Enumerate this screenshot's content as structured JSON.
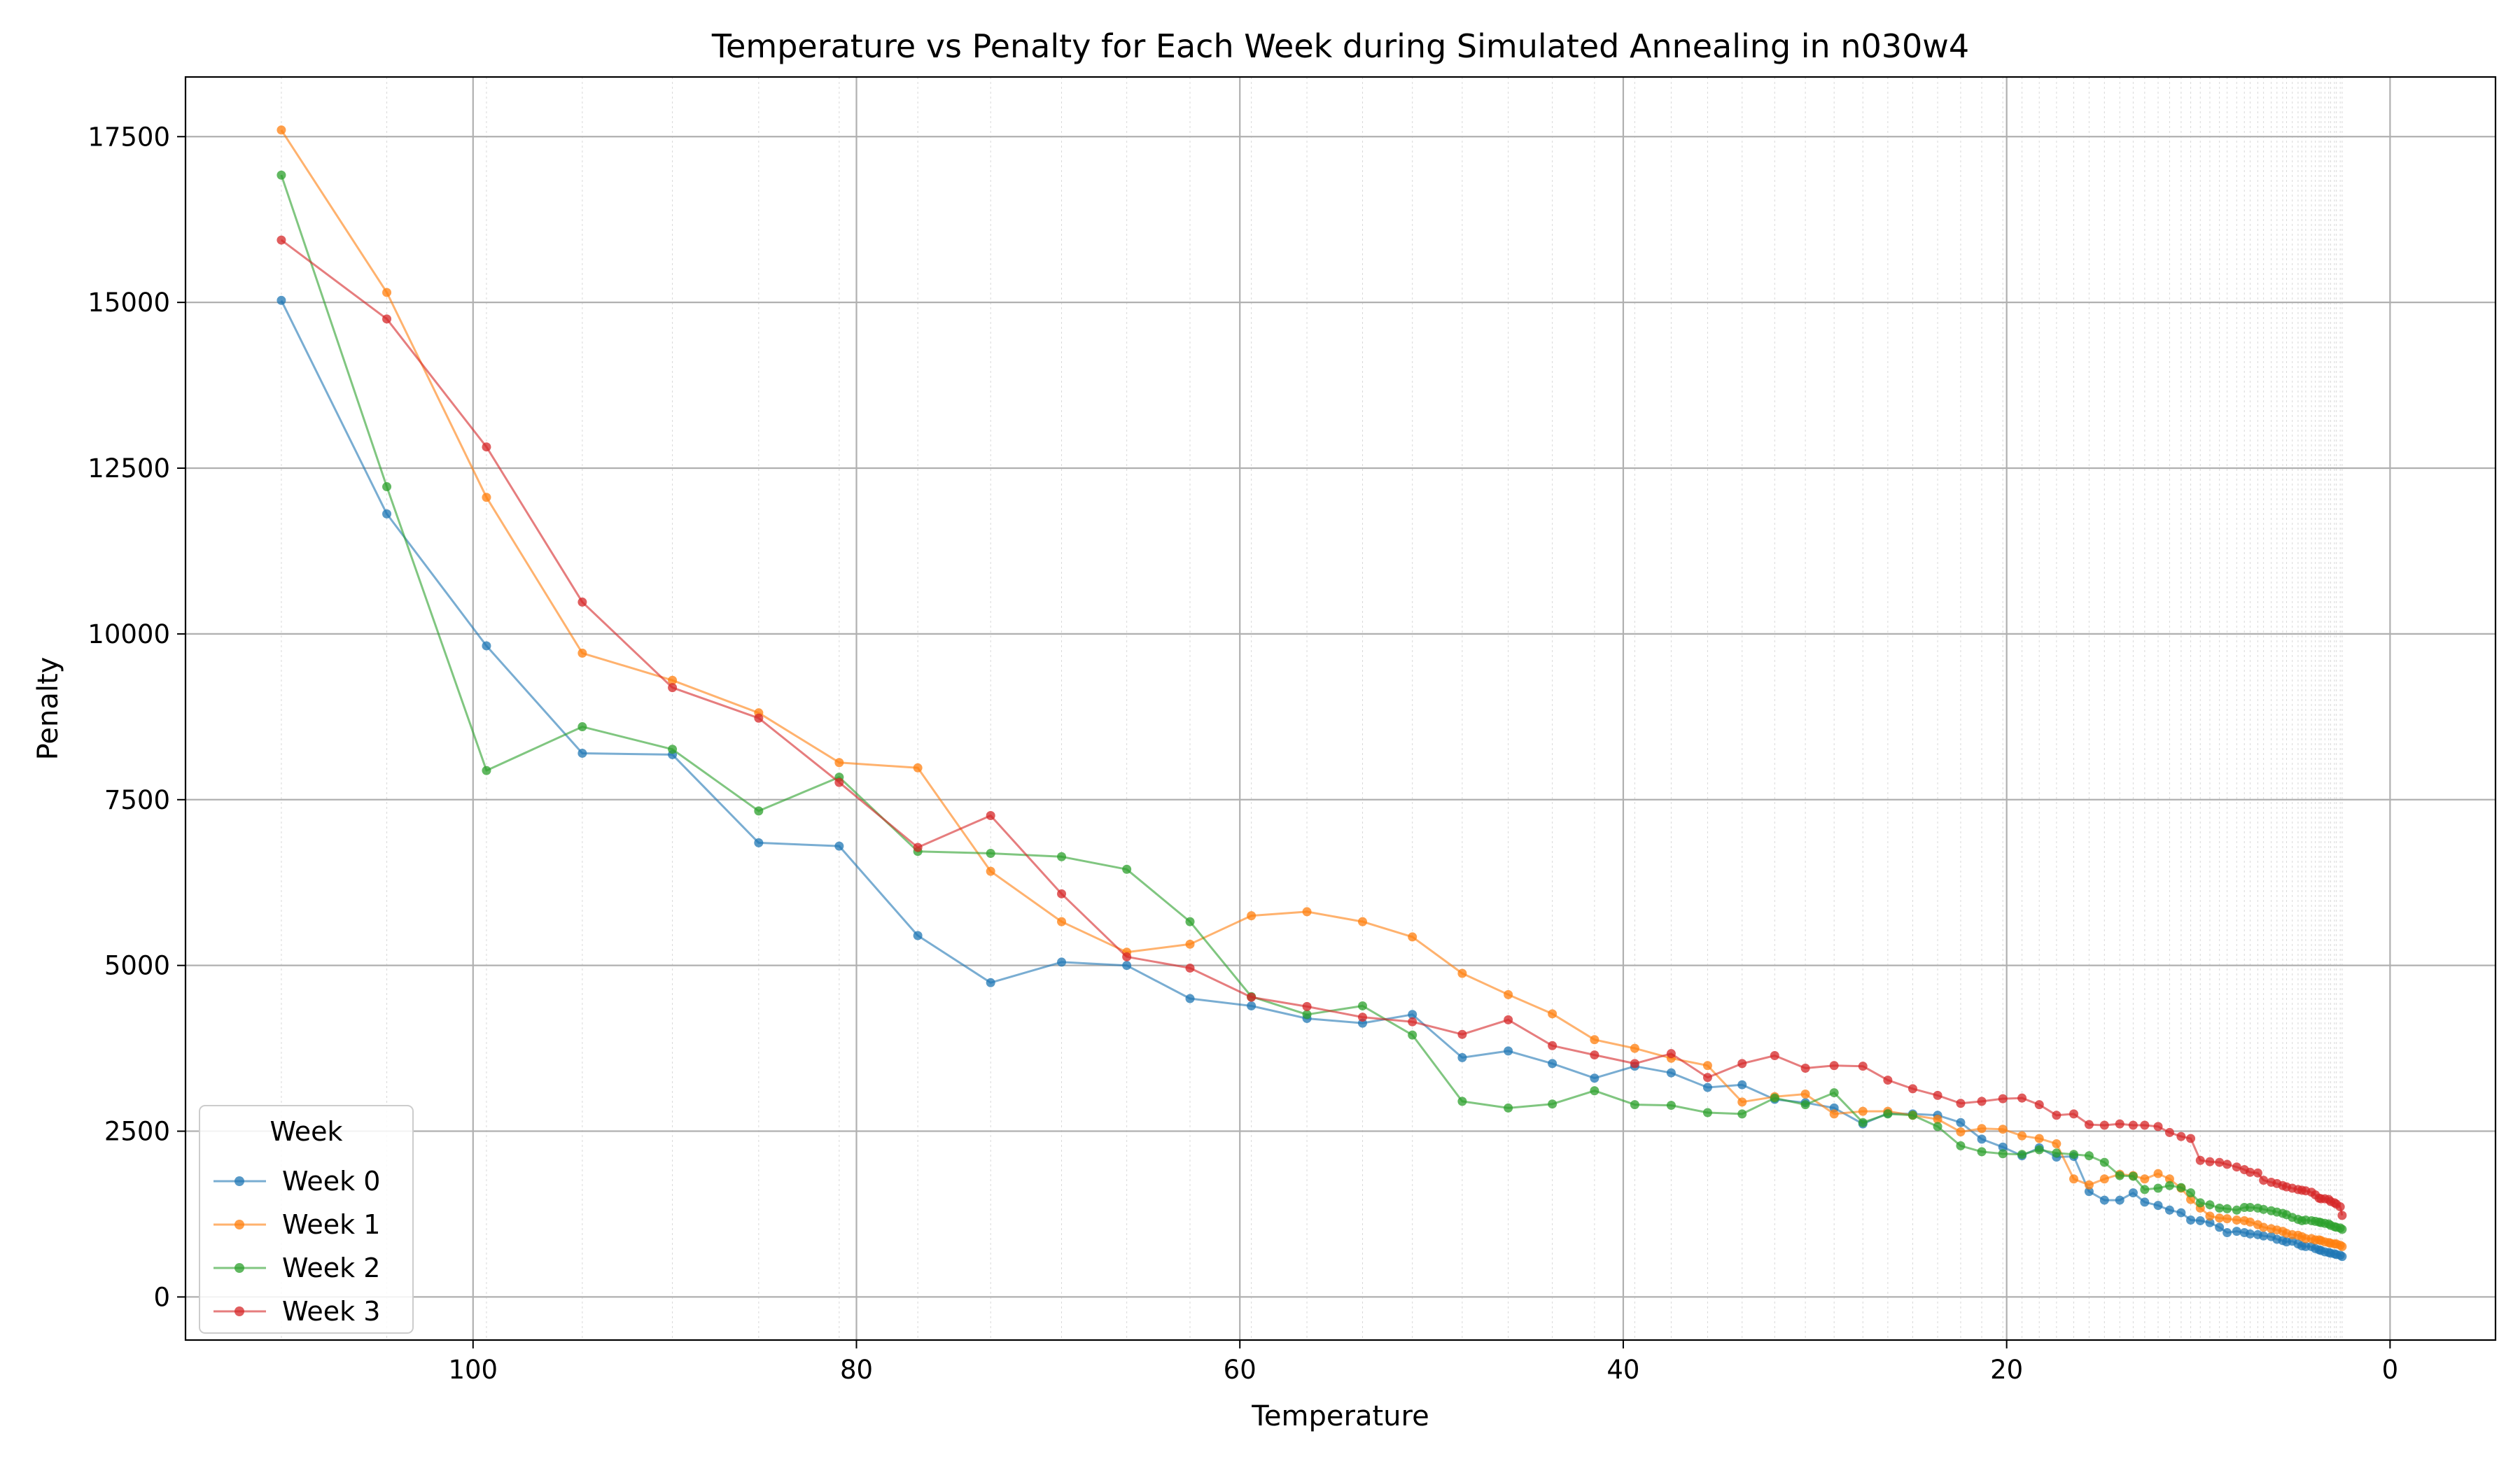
{
  "chart_data": {
    "type": "line",
    "title": "Temperature vs Penalty for Each Week during Simulated Annealing in n030w4",
    "xlabel": "Temperature",
    "ylabel": "Penalty",
    "xlim": [
      115.0,
      -5.5
    ],
    "ylim": [
      -650,
      18400
    ],
    "x_inverted": true,
    "grid": true,
    "minor_grid": true,
    "legend_title": "Week",
    "legend_placement": "lower-left",
    "x_ticks": [
      {
        "value": 100,
        "label": "100"
      },
      {
        "value": 80,
        "label": "80"
      },
      {
        "value": 60,
        "label": "60"
      },
      {
        "value": 40,
        "label": "40"
      },
      {
        "value": 20,
        "label": "20"
      },
      {
        "value": 0,
        "label": "0"
      }
    ],
    "y_ticks": [
      {
        "value": 0,
        "label": "0"
      },
      {
        "value": 2500,
        "label": "2500"
      },
      {
        "value": 5000,
        "label": "5000"
      },
      {
        "value": 7500,
        "label": "7500"
      },
      {
        "value": 10000,
        "label": "10000"
      },
      {
        "value": 12500,
        "label": "12500"
      },
      {
        "value": 15000,
        "label": "15000"
      },
      {
        "value": 17500,
        "label": "17500"
      }
    ],
    "x": [
      110.0,
      104.5,
      99.3,
      94.3,
      89.6,
      85.1,
      80.9,
      76.8,
      73.0,
      69.3,
      65.9,
      62.6,
      59.4,
      56.5,
      53.6,
      51.0,
      48.4,
      46.0,
      43.7,
      41.5,
      39.4,
      37.5,
      35.6,
      33.8,
      32.1,
      30.5,
      29.0,
      27.5,
      26.2,
      24.9,
      23.6,
      22.4,
      21.3,
      20.2,
      19.2,
      18.3,
      17.4,
      16.5,
      15.7,
      14.9,
      14.1,
      13.4,
      12.8,
      12.1,
      11.5,
      10.9,
      10.4,
      9.9,
      9.4,
      8.9,
      8.5,
      8.0,
      7.6,
      7.3,
      6.9,
      6.6,
      6.2,
      5.9,
      5.6,
      5.4,
      5.1,
      4.8,
      4.6,
      4.4,
      4.1,
      3.9,
      3.7,
      3.6,
      3.4,
      3.2,
      3.1,
      2.9,
      2.8,
      2.6,
      2.5
    ],
    "series": [
      {
        "name": "Week 0",
        "color": "#1f77b4",
        "values": [
          15030,
          11810,
          9820,
          8200,
          8180,
          6850,
          6800,
          5450,
          4740,
          5050,
          5000,
          4500,
          4390,
          4200,
          4130,
          4260,
          3610,
          3710,
          3520,
          3300,
          3480,
          3380,
          3160,
          3200,
          2980,
          2930,
          2850,
          2610,
          2770,
          2760,
          2740,
          2630,
          2380,
          2260,
          2130,
          2250,
          2110,
          2120,
          1590,
          1460,
          1460,
          1570,
          1430,
          1380,
          1310,
          1270,
          1160,
          1150,
          1120,
          1050,
          970,
          990,
          970,
          950,
          940,
          920,
          910,
          870,
          850,
          830,
          840,
          800,
          770,
          760,
          760,
          730,
          710,
          700,
          680,
          670,
          660,
          650,
          640,
          630,
          610
        ]
      },
      {
        "name": "Week 1",
        "color": "#ff7f0e",
        "values": [
          17600,
          15150,
          12060,
          9710,
          9300,
          8810,
          8060,
          7980,
          6420,
          5660,
          5200,
          5320,
          5750,
          5810,
          5660,
          5430,
          4880,
          4560,
          4270,
          3880,
          3750,
          3600,
          3490,
          2940,
          3020,
          3060,
          2760,
          2800,
          2800,
          2740,
          2680,
          2490,
          2540,
          2530,
          2430,
          2390,
          2310,
          1780,
          1690,
          1780,
          1850,
          1830,
          1780,
          1860,
          1780,
          1640,
          1470,
          1340,
          1220,
          1190,
          1180,
          1160,
          1150,
          1130,
          1090,
          1050,
          1030,
          1010,
          990,
          960,
          940,
          930,
          910,
          880,
          880,
          860,
          860,
          850,
          830,
          820,
          810,
          800,
          800,
          780,
          760
        ]
      },
      {
        "name": "Week 2",
        "color": "#2ca02c",
        "values": [
          16920,
          12220,
          7940,
          8600,
          8260,
          7330,
          7840,
          6720,
          6690,
          6640,
          6450,
          5660,
          4530,
          4260,
          4390,
          3950,
          2950,
          2850,
          2910,
          3110,
          2900,
          2890,
          2780,
          2760,
          3000,
          2900,
          3080,
          2630,
          2760,
          2740,
          2570,
          2280,
          2190,
          2160,
          2150,
          2220,
          2170,
          2150,
          2130,
          2030,
          1830,
          1820,
          1620,
          1640,
          1680,
          1650,
          1570,
          1420,
          1390,
          1340,
          1330,
          1310,
          1350,
          1350,
          1340,
          1320,
          1300,
          1280,
          1260,
          1240,
          1200,
          1170,
          1150,
          1160,
          1150,
          1140,
          1130,
          1120,
          1110,
          1100,
          1080,
          1060,
          1050,
          1040,
          1020
        ]
      },
      {
        "name": "Week 3",
        "color": "#d62728",
        "values": [
          15940,
          14750,
          12820,
          10480,
          9190,
          8730,
          7760,
          6780,
          7260,
          6080,
          5130,
          4960,
          4520,
          4380,
          4220,
          4150,
          3960,
          4180,
          3790,
          3650,
          3520,
          3670,
          3310,
          3520,
          3640,
          3450,
          3490,
          3480,
          3270,
          3140,
          3040,
          2920,
          2950,
          2990,
          3000,
          2900,
          2740,
          2760,
          2600,
          2590,
          2610,
          2590,
          2590,
          2570,
          2480,
          2420,
          2390,
          2060,
          2040,
          2030,
          2000,
          1960,
          1920,
          1880,
          1870,
          1760,
          1730,
          1710,
          1680,
          1660,
          1640,
          1620,
          1610,
          1600,
          1580,
          1540,
          1490,
          1480,
          1480,
          1470,
          1440,
          1420,
          1400,
          1360,
          1230
        ]
      }
    ]
  }
}
